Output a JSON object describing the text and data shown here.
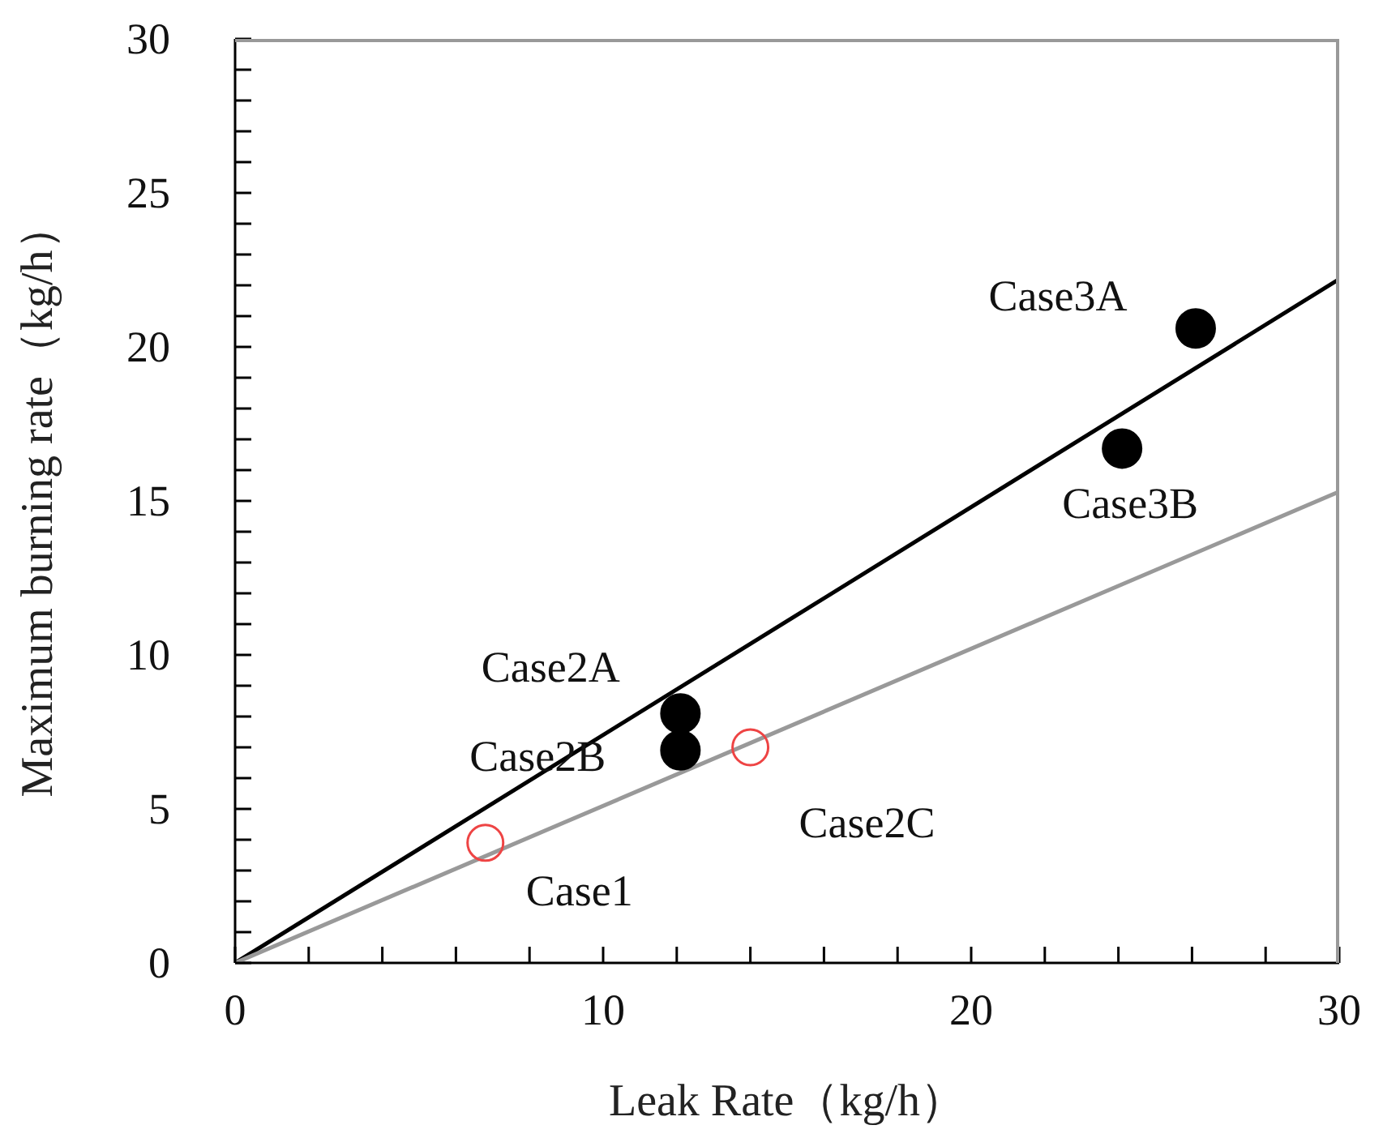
{
  "chart_data": {
    "type": "scatter",
    "xlabel": "Leak Rate（kg/h）",
    "ylabel": "Maximum burning rate（kg/h）",
    "xlim": [
      0,
      30
    ],
    "ylim": [
      0,
      30
    ],
    "xticks": [
      0,
      {
        "value": 2,
        "label": null
      },
      {
        "value": 4,
        "label": null
      },
      {
        "value": 6,
        "label": null
      },
      {
        "value": 8,
        "label": null
      },
      10,
      {
        "value": 12,
        "label": null
      },
      {
        "value": 14,
        "label": null
      },
      {
        "value": 16,
        "label": null
      },
      {
        "value": 18,
        "label": null
      },
      20,
      {
        "value": 22,
        "label": null
      },
      {
        "value": 24,
        "label": null
      },
      {
        "value": 26,
        "label": null
      },
      {
        "value": 28,
        "label": null
      },
      30
    ],
    "yticks": [
      0,
      {
        "value": 1,
        "label": null
      },
      {
        "value": 2,
        "label": null
      },
      {
        "value": 3,
        "label": null
      },
      {
        "value": 4,
        "label": null
      },
      5,
      {
        "value": 6,
        "label": null
      },
      {
        "value": 7,
        "label": null
      },
      {
        "value": 8,
        "label": null
      },
      {
        "value": 9,
        "label": null
      },
      10,
      {
        "value": 11,
        "label": null
      },
      {
        "value": 12,
        "label": null
      },
      {
        "value": 13,
        "label": null
      },
      {
        "value": 14,
        "label": null
      },
      15,
      {
        "value": 16,
        "label": null
      },
      {
        "value": 17,
        "label": null
      },
      {
        "value": 18,
        "label": null
      },
      {
        "value": 19,
        "label": null
      },
      20,
      {
        "value": 21,
        "label": null
      },
      {
        "value": 22,
        "label": null
      },
      {
        "value": 23,
        "label": null
      },
      {
        "value": 24,
        "label": null
      },
      25,
      {
        "value": 26,
        "label": null
      },
      {
        "value": 27,
        "label": null
      },
      {
        "value": 28,
        "label": null
      },
      {
        "value": 29,
        "label": null
      },
      30
    ],
    "marker": "circle",
    "series": [
      {
        "type": "line",
        "marker": "none",
        "color": "#000000",
        "x": [
          0,
          30
        ],
        "values": [
          0,
          22.2
        ]
      },
      {
        "type": "line",
        "marker": "none",
        "color": "#999999",
        "x": [
          0,
          30
        ],
        "values": [
          0,
          15.3
        ]
      },
      {
        "color": "#000000",
        "x": [
          12.1,
          12.1,
          24.1,
          26.1
        ],
        "values": [
          8.1,
          6.9,
          16.7,
          20.6
        ]
      },
      {
        "color": "#ee4444",
        "x": [
          6.8,
          14.0
        ],
        "values": [
          3.9,
          7.0
        ]
      }
    ],
    "annotations": [
      {
        "text": "Case1",
        "x": 6.8,
        "y": 3.9
      },
      {
        "text": "Case2A",
        "x": 12.1,
        "y": 8.1
      },
      {
        "text": "Case2B",
        "x": 12.1,
        "y": 6.9
      },
      {
        "text": "Case2C",
        "x": 14.0,
        "y": 7.0
      },
      {
        "text": "Case3A",
        "x": 26.1,
        "y": 20.6
      },
      {
        "text": "Case3B",
        "x": 24.1,
        "y": 16.7
      }
    ]
  }
}
